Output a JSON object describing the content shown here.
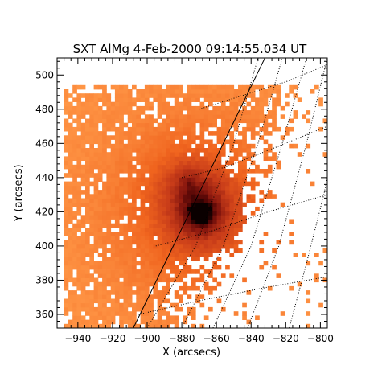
{
  "chart_data": {
    "type": "heatmap",
    "title": "SXT AlMg  4-Feb-2000 09:14:55.034 UT",
    "xlabel": "X (arcsecs)",
    "ylabel": "Y (arcsecs)",
    "xlim": [
      -952,
      -796
    ],
    "ylim": [
      352,
      510
    ],
    "xticks": [
      -940,
      -920,
      -900,
      -880,
      -860,
      -840,
      -820,
      -800
    ],
    "yticks": [
      360,
      380,
      400,
      420,
      440,
      460,
      480,
      500
    ],
    "colormap": "red-temperature (white background, orange to dark red)",
    "image_extent": {
      "x": [
        -948,
        -797
      ],
      "y": [
        352,
        492
      ]
    },
    "bright_core": {
      "x": -870,
      "y": 418
    },
    "limb_line": [
      [
        -908,
        352
      ],
      [
        -832,
        510
      ]
    ],
    "grid_style": "dotted heliographic grid",
    "colors": {
      "background": "#ffffff",
      "low": "#f0651a",
      "mid": "#c0401a",
      "high": "#5a0808",
      "peak": "#000000"
    }
  }
}
